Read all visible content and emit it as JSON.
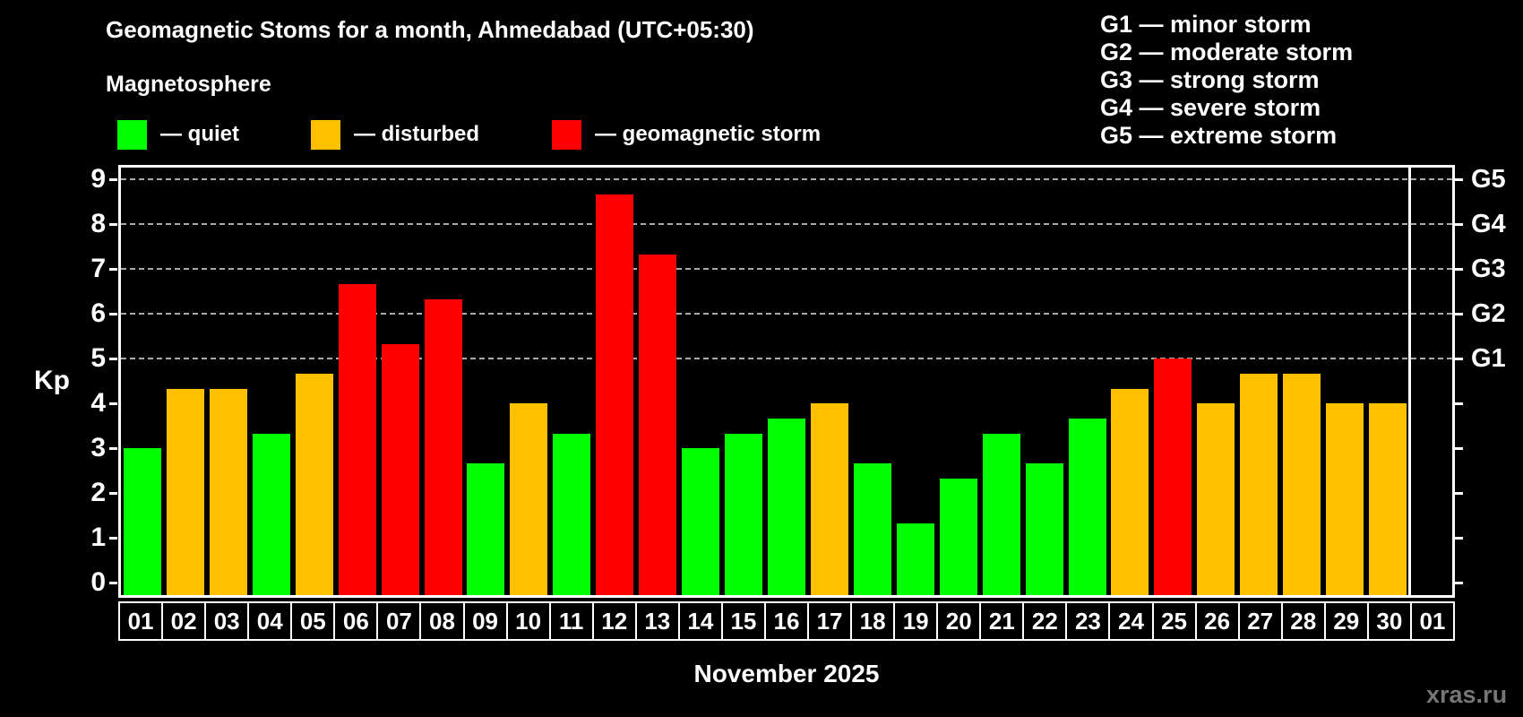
{
  "title": "Geomagnetic Stoms for a month, Ahmedabad (UTC+05:30)",
  "subtitle": "Magnetosphere",
  "legend": {
    "items": [
      {
        "key": "quiet",
        "label": "— quiet",
        "color": "#00ff00"
      },
      {
        "key": "disturbed",
        "label": "— disturbed",
        "color": "#ffc000"
      },
      {
        "key": "storm",
        "label": "— geomagnetic storm",
        "color": "#ff0000"
      }
    ]
  },
  "g_legend": [
    "G1 — minor storm",
    "G2 — moderate storm",
    "G3 — strong storm",
    "G4 — severe storm",
    "G5 — extreme storm"
  ],
  "y_axis": {
    "label": "Kp",
    "ticks": [
      0,
      1,
      2,
      3,
      4,
      5,
      6,
      7,
      8,
      9
    ]
  },
  "right_axis": {
    "labels": [
      "G1",
      "G2",
      "G3",
      "G4",
      "G5"
    ],
    "kp_values": [
      5,
      6,
      7,
      8,
      9
    ]
  },
  "x_axis": {
    "label": "November 2025"
  },
  "watermark": "xras.ru",
  "colors": {
    "background": "#000000",
    "text": "#ffffff",
    "grid": "#a9a9a9",
    "watermark": "#767676"
  },
  "chart_data": {
    "type": "bar",
    "title": "Geomagnetic Stoms for a month, Ahmedabad (UTC+05:30)",
    "xlabel": "November 2025",
    "ylabel": "Kp",
    "ylim": [
      0,
      9.4
    ],
    "grid": "dashed horizontal at Kp 5-9 (G1-G5)",
    "legend_position": "top-left",
    "categories": [
      "01",
      "02",
      "03",
      "04",
      "05",
      "06",
      "07",
      "08",
      "09",
      "10",
      "11",
      "12",
      "13",
      "14",
      "15",
      "16",
      "17",
      "18",
      "19",
      "20",
      "21",
      "22",
      "23",
      "24",
      "25",
      "26",
      "27",
      "28",
      "29",
      "30",
      "01"
    ],
    "values": [
      3,
      4.33,
      4.33,
      3.33,
      4.67,
      6.67,
      5.33,
      6.33,
      2.67,
      4,
      3.33,
      8.67,
      7.33,
      3,
      3.33,
      3.67,
      4,
      2.67,
      1.33,
      2.33,
      3.33,
      2.67,
      3.67,
      4.33,
      5,
      4,
      4.67,
      4.67,
      4,
      4,
      null
    ],
    "statuses": [
      "quiet",
      "disturbed",
      "disturbed",
      "quiet",
      "disturbed",
      "storm",
      "storm",
      "storm",
      "quiet",
      "disturbed",
      "quiet",
      "storm",
      "storm",
      "quiet",
      "quiet",
      "quiet",
      "disturbed",
      "quiet",
      "quiet",
      "quiet",
      "quiet",
      "quiet",
      "quiet",
      "disturbed",
      "storm",
      "disturbed",
      "disturbed",
      "disturbed",
      "disturbed",
      "disturbed",
      null
    ]
  }
}
